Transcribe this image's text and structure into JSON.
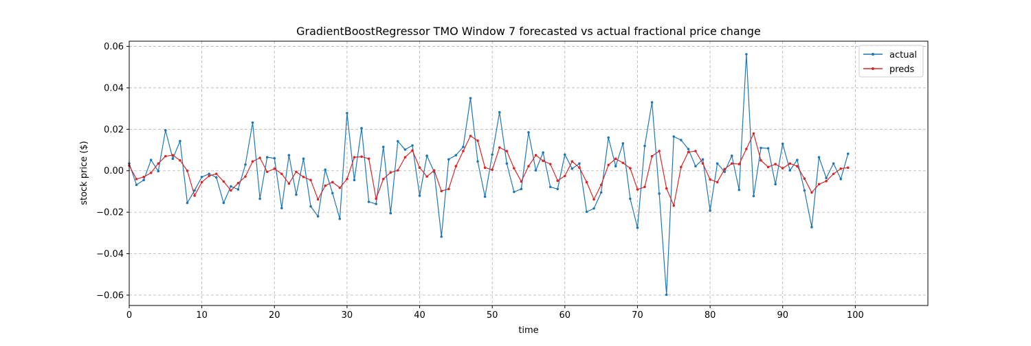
{
  "chart_data": {
    "type": "line",
    "title": "GradientBoostRegressor TMO Window 7 forecasted vs actual fractional price change",
    "xlabel": "time",
    "ylabel": "stock price ($)",
    "xlim": [
      0,
      110
    ],
    "ylim": [
      -0.065,
      0.0625
    ],
    "xticks": [
      0,
      10,
      20,
      30,
      40,
      50,
      60,
      70,
      80,
      90,
      100
    ],
    "xtick_labels": [
      "0",
      "10",
      "20",
      "30",
      "40",
      "50",
      "60",
      "70",
      "80",
      "90",
      "100"
    ],
    "yticks": [
      -0.06,
      -0.04,
      -0.02,
      0.0,
      0.02,
      0.04,
      0.06
    ],
    "ytick_labels": [
      "−0.06",
      "−0.04",
      "−0.02",
      "0.00",
      "0.02",
      "0.04",
      "0.06"
    ],
    "grid": true,
    "legend_position": "top-right",
    "series": [
      {
        "name": "actual",
        "color": "#1f77b4",
        "values": [
          0.0035,
          -0.0068,
          -0.0045,
          0.0052,
          -0.0002,
          0.0195,
          0.0058,
          0.0143,
          -0.0155,
          -0.0095,
          -0.003,
          -0.0015,
          -0.0032,
          -0.0155,
          -0.0075,
          -0.009,
          0.003,
          0.0232,
          -0.0135,
          0.0065,
          0.006,
          -0.018,
          0.0075,
          -0.0115,
          0.0058,
          -0.0172,
          -0.022,
          0.0005,
          -0.0108,
          -0.0232,
          0.0278,
          -0.0045,
          0.0205,
          -0.015,
          -0.016,
          0.0115,
          -0.0205,
          0.0142,
          0.0102,
          0.0122,
          -0.012,
          0.0072,
          -0.0005,
          -0.0318,
          0.0055,
          0.0075,
          0.0115,
          0.035,
          0.0045,
          -0.0125,
          0.0078,
          0.0282,
          0.0035,
          -0.0102,
          -0.0088,
          0.0185,
          0.0002,
          0.0088,
          -0.0078,
          -0.0088,
          0.0078,
          0.001,
          0.0035,
          -0.0198,
          -0.0182,
          -0.0105,
          0.016,
          0.0022,
          0.0132,
          -0.0135,
          -0.0275,
          0.012,
          0.033,
          -0.011,
          -0.0598,
          0.0165,
          0.0148,
          0.0105,
          0.0022,
          0.0055,
          -0.0192,
          0.0035,
          -0.0005,
          0.0072,
          -0.0092,
          0.0562,
          -0.0122,
          0.011,
          0.0108,
          -0.0065,
          0.013,
          0.0002,
          0.0052,
          -0.0095,
          -0.0272,
          0.0065,
          -0.0035,
          0.0035,
          -0.004,
          0.0082
        ]
      },
      {
        "name": "preds",
        "color": "#d62728",
        "values": [
          0.0025,
          -0.004,
          -0.003,
          -0.001,
          0.0035,
          0.007,
          0.0075,
          0.005,
          0.0,
          -0.012,
          -0.0055,
          -0.0025,
          -0.0015,
          -0.0052,
          -0.0095,
          -0.006,
          -0.0028,
          0.0045,
          0.0062,
          -0.0005,
          0.001,
          -0.0015,
          -0.0062,
          -0.0005,
          -0.003,
          -0.0045,
          -0.0138,
          -0.0072,
          -0.0055,
          -0.0082,
          -0.004,
          0.0065,
          0.0068,
          0.0058,
          -0.0135,
          -0.004,
          -0.0008,
          0.0002,
          0.0065,
          0.0098,
          0.0015,
          -0.0028,
          0.0002,
          -0.0098,
          -0.0088,
          0.0022,
          0.0095,
          0.0168,
          0.0145,
          0.0015,
          0.0005,
          0.0112,
          0.0095,
          0.0012,
          -0.0052,
          0.0022,
          0.0075,
          0.0048,
          0.0032,
          -0.0048,
          -0.0025,
          0.0045,
          0.0015,
          -0.0055,
          -0.0138,
          -0.0068,
          0.0028,
          0.0058,
          0.0038,
          0.0012,
          -0.009,
          -0.0078,
          0.007,
          0.0095,
          -0.0085,
          -0.0168,
          0.0018,
          0.009,
          0.0095,
          0.0035,
          -0.0042,
          -0.0055,
          0.0008,
          0.0035,
          0.0032,
          0.0105,
          0.018,
          0.005,
          0.0018,
          0.0032,
          0.0012,
          0.0035,
          0.0022,
          -0.0038,
          -0.0105,
          -0.0065,
          -0.005,
          -0.0015,
          0.001,
          0.0015
        ]
      }
    ]
  }
}
